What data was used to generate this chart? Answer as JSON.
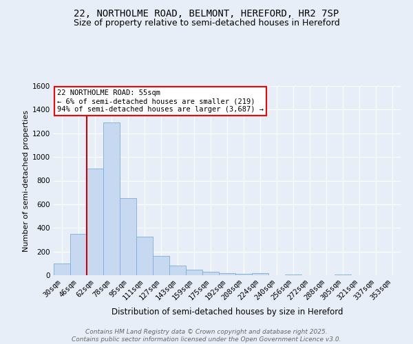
{
  "title": "22, NORTHOLME ROAD, BELMONT, HEREFORD, HR2 7SP",
  "subtitle": "Size of property relative to semi-detached houses in Hereford",
  "xlabel": "Distribution of semi-detached houses by size in Hereford",
  "ylabel": "Number of semi-detached properties",
  "categories": [
    "30sqm",
    "46sqm",
    "62sqm",
    "78sqm",
    "95sqm",
    "111sqm",
    "127sqm",
    "143sqm",
    "159sqm",
    "175sqm",
    "192sqm",
    "208sqm",
    "224sqm",
    "240sqm",
    "256sqm",
    "272sqm",
    "288sqm",
    "305sqm",
    "321sqm",
    "337sqm",
    "353sqm"
  ],
  "bar_heights": [
    100,
    350,
    900,
    1290,
    650,
    325,
    165,
    80,
    45,
    30,
    20,
    10,
    15,
    0,
    5,
    0,
    0,
    5,
    0,
    0,
    0
  ],
  "bar_color": "#c6d9f0",
  "bar_edge_color": "#7bafd4",
  "vline_x": 1.5,
  "vline_color": "#cc0000",
  "ylim_max": 1600,
  "yticks": [
    0,
    200,
    400,
    600,
    800,
    1000,
    1200,
    1400,
    1600
  ],
  "annotation_line1": "22 NORTHOLME ROAD: 55sqm",
  "annotation_line2": "← 6% of semi-detached houses are smaller (219)",
  "annotation_line3": "94% of semi-detached houses are larger (3,687) →",
  "footnote1": "Contains HM Land Registry data © Crown copyright and database right 2025.",
  "footnote2": "Contains public sector information licensed under the Open Government Licence v3.0.",
  "bg_color": "#e8eef8",
  "title_fontsize": 10,
  "subtitle_fontsize": 9,
  "ylabel_fontsize": 8,
  "xlabel_fontsize": 8.5,
  "tick_fontsize": 7.5,
  "annot_fontsize": 7.5,
  "footnote_fontsize": 6.5
}
